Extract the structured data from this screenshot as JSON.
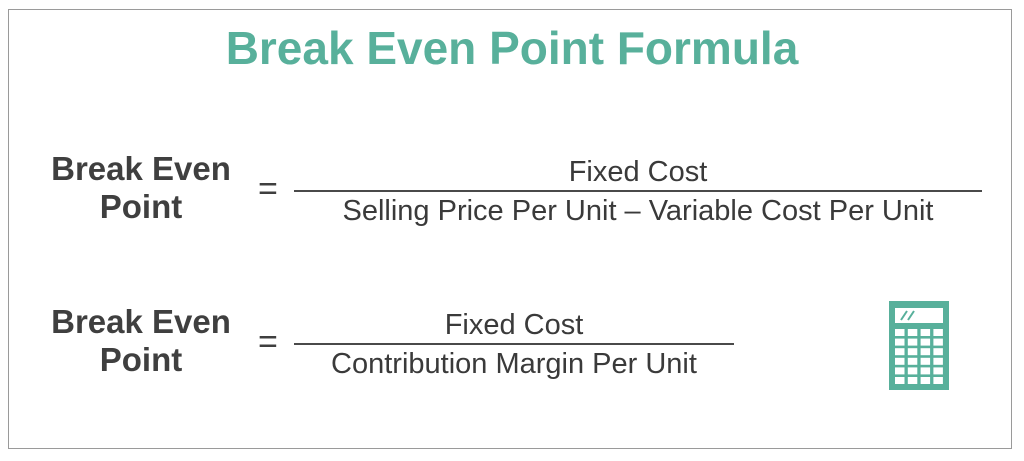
{
  "title": "Break Even Point Formula",
  "formula1": {
    "lhs_line1": "Break Even",
    "lhs_line2": "Point",
    "equals": "=",
    "numerator": "Fixed Cost",
    "denominator": "Selling Price Per Unit – Variable Cost Per Unit"
  },
  "formula2": {
    "lhs_line1": "Break Even",
    "lhs_line2": "Point",
    "equals": "=",
    "numerator": "Fixed Cost",
    "denominator": "Contribution Margin Per Unit"
  },
  "colors": {
    "accent": "#58b09b",
    "text": "#3f3f3f"
  },
  "icon": "calculator-icon"
}
